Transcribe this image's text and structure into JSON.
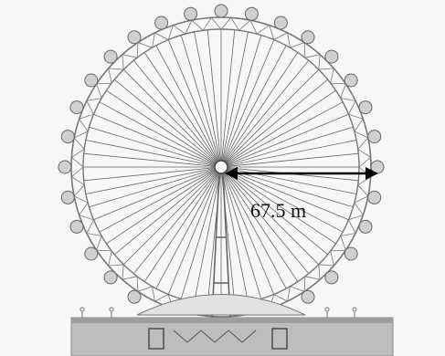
{
  "annotation": {
    "label": "67.5 m"
  }
}
